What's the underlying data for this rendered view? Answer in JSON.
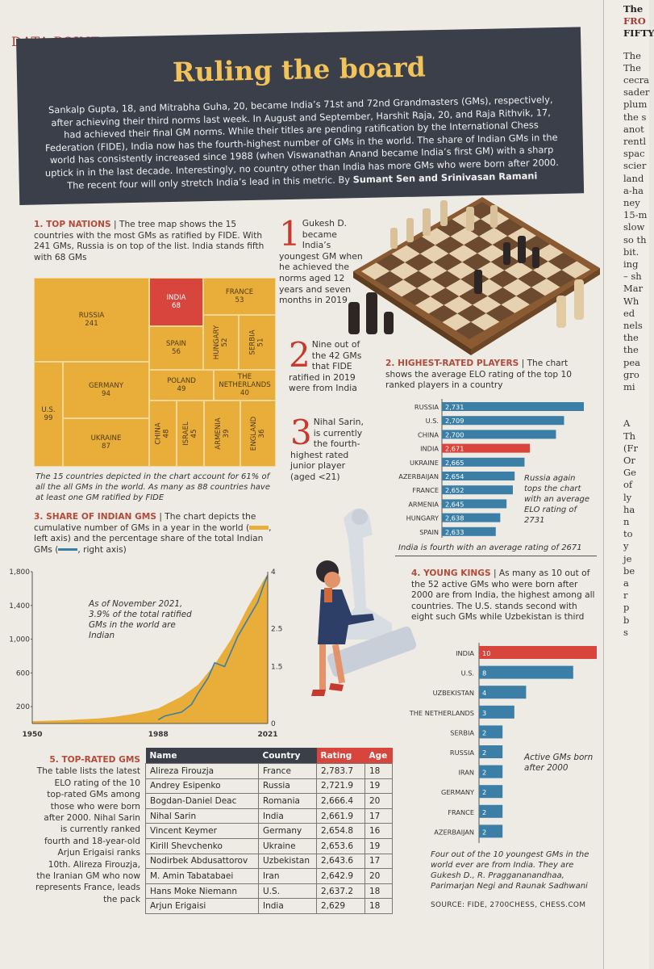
{
  "header": {
    "kicker": "DATA POINT",
    "title": "Ruling the board",
    "intro": "Sankalp Gupta, 18, and Mitrabha Guha, 20, became India’s 71st and 72nd Grandmasters (GMs), respectively, after achieving their third norms last week. In August and September, Harshit Raja, 20, and Raja Rithvik, 17, had achieved their final GM norms. While their titles are pending ratification by the International Chess Federation (FIDE), India now has the fourth-highest number of GMs in the world. The share of Indian GMs in the world has consistently increased since 1988 (when Viswanathan Anand became India’s first GM) with a sharp uptick in in the last decade. Interestingly, no country other than India has more GMs who were born after 2000. The recent four will only stretch India’s lead in this metric. By",
    "byline": "Sumant Sen and Srinivasan Ramani"
  },
  "neighbor_column": [
    "The",
    "FRO",
    "FIFTY",
    "The",
    "The",
    "cecra",
    "sader",
    "plum",
    "the s",
    "anot",
    "rentl",
    "spac",
    "scier",
    "land",
    "a-ha",
    "ney",
    "15-m",
    "slow",
    "so th",
    "bit.",
    "ing",
    "– sh",
    "Mar",
    "Wh",
    "ed",
    "nels",
    "the",
    "the",
    "pea",
    "gro",
    "mi",
    "A",
    "Th",
    "(Fr",
    "Or",
    "Ge",
    "of",
    "ly",
    "ha",
    "n",
    "to",
    "y",
    "je",
    "be",
    "a",
    "r",
    "p",
    "b",
    "s"
  ],
  "sections": {
    "s1": {
      "heading": "1. TOP NATIONS",
      "text": "The tree map shows the 15 countries with the most GMs as ratified by FIDE. With 241 GMs, Russia is on top of the list. India stands fifth with 68 GMs",
      "note": "The 15 countries depicted in the chart account for 61% of all the all GMs in the world. As many as 88 countries have at least one GM ratified by FIDE"
    },
    "s2": {
      "heading": "2. HIGHEST-RATED PLAYERS",
      "text": "The chart shows the average ELO rating of the top 10 ranked players in a country",
      "annotation": "Russia again tops the chart with an average ELO rating of 2731",
      "note": "India is fourth with an average rating of 2671"
    },
    "s3": {
      "heading": "3. SHARE OF INDIAN GMS",
      "text": "The chart depicts the cumulative number of GMs in a year in the world (",
      "text2": ", left axis) and the percentage share of the total Indian GMs (",
      "text3": ", right axis)",
      "annotation": "As of November 2021, 3.9% of the total ratified GMs in the world are Indian"
    },
    "s4": {
      "heading": "4. YOUNG KINGS",
      "text": "As many as 10 out of the 52 active GMs who were born after 2000 are from India, the highest among all countries. The U.S. stands second with eight such GMs while Uzbekistan is third",
      "annotation": "Active GMs born after 2000",
      "note": "Four out of the 10 youngest GMs in the world ever are from India. They are Gukesh D., R. Praggananandhaa, Parimarjan Negi and Raunak Sadhwani",
      "source": "SOURCE: FIDE, 2700CHESS, CHESS.COM"
    },
    "s5": {
      "heading": "5. TOP-RATED GMS",
      "text": "The table lists the latest ELO rating of the 10 top-rated GMs among those who were born after 2000. Nihal Sarin is currently ranked fourth and 18-year-old Arjun Erigaisi ranks 10th. Alireza Firouzja, the Iranian GM who now represents France, leads the pack"
    }
  },
  "facts": [
    {
      "num": "1",
      "text": "Gukesh D. became India’s youngest GM when he achieved the norms aged 12 years and seven months in 2019"
    },
    {
      "num": "2",
      "text": "Nine out of the 42 GMs that FIDE ratified in 2019 were from India"
    },
    {
      "num": "3",
      "text": "Nihal Sarin, is currently the fourth-highest rated junior player (aged <21)"
    }
  ],
  "colors": {
    "banner": "#3b3f4a",
    "gold": "#e9ad3a",
    "red": "#d8453c",
    "blue": "#3b7ea6"
  },
  "table": {
    "headers": [
      "Name",
      "Country",
      "Rating",
      "Age"
    ],
    "rows": [
      [
        "Alireza Firouzja",
        "France",
        "2,783.7",
        "18"
      ],
      [
        "Andrey Esipenko",
        "Russia",
        "2,721.9",
        "19"
      ],
      [
        "Bogdan-Daniel Deac",
        "Romania",
        "2,666.4",
        "20"
      ],
      [
        "Nihal Sarin",
        "India",
        "2,661.9",
        "17"
      ],
      [
        "Vincent Keymer",
        "Germany",
        "2,654.8",
        "16"
      ],
      [
        "Kirill Shevchenko",
        "Ukraine",
        "2,653.6",
        "19"
      ],
      [
        "Nodirbek Abdusattorov",
        "Uzbekistan",
        "2,643.6",
        "17"
      ],
      [
        "M. Amin Tabatabaei",
        "Iran",
        "2,642.9",
        "20"
      ],
      [
        "Hans Moke Niemann",
        "U.S.",
        "2,637.2",
        "18"
      ],
      [
        "Arjun Erigaisi",
        "India",
        "2,629",
        "18"
      ]
    ]
  },
  "chart_data": [
    {
      "type": "treemap",
      "items": [
        {
          "name": "RUSSIA",
          "value": 241
        },
        {
          "name": "INDIA",
          "value": 68,
          "highlight": true
        },
        {
          "name": "FRANCE",
          "value": 53
        },
        {
          "name": "SPAIN",
          "value": 56
        },
        {
          "name": "HUNGARY",
          "value": 52
        },
        {
          "name": "SERBIA",
          "value": 51
        },
        {
          "name": "GERMANY",
          "value": 94
        },
        {
          "name": "POLAND",
          "value": 49
        },
        {
          "name": "THE NETHERLANDS",
          "value": 40
        },
        {
          "name": "U.S.",
          "value": 99
        },
        {
          "name": "UKRAINE",
          "value": 87
        },
        {
          "name": "CHINA",
          "value": 48
        },
        {
          "name": "ISRAEL",
          "value": 45
        },
        {
          "name": "ARMENIA",
          "value": 39
        },
        {
          "name": "ENGLAND",
          "value": 36
        }
      ]
    },
    {
      "type": "bar",
      "orientation": "horizontal",
      "categories": [
        "RUSSIA",
        "U.S.",
        "CHINA",
        "INDIA",
        "UKRAINE",
        "AZERBAIJAN",
        "FRANCE",
        "ARMENIA",
        "HUNGARY",
        "SPAIN"
      ],
      "values": [
        2731,
        2709,
        2700,
        2671,
        2665,
        2654,
        2652,
        2645,
        2638,
        2633
      ],
      "labels": [
        "2,731",
        "2,709",
        "2,700",
        "2,671",
        "2,665",
        "2,654",
        "2,652",
        "2,645",
        "2,638",
        "2,633"
      ],
      "highlight": "INDIA"
    },
    {
      "type": "line",
      "x": [
        1950,
        1988,
        2021
      ],
      "xticks": [
        "1950",
        "1988",
        "2021"
      ],
      "left_axis": {
        "ticks": [
          "200",
          "600",
          "1,000",
          "1,400",
          "1,800"
        ],
        "ylim": [
          0,
          1800
        ]
      },
      "right_axis": {
        "ticks": [
          "0",
          "1.5",
          "2.5",
          "4"
        ],
        "ylim": [
          0,
          4
        ]
      },
      "series": [
        {
          "kind": "area",
          "axis": "left",
          "x": [
            1950,
            1960,
            1970,
            1975,
            1980,
            1985,
            1988,
            1990,
            1995,
            2000,
            2005,
            2008,
            2010,
            2012,
            2015,
            2018,
            2021
          ],
          "y": [
            28,
            40,
            60,
            80,
            110,
            150,
            180,
            220,
            320,
            460,
            700,
            880,
            1000,
            1150,
            1380,
            1580,
            1780
          ]
        },
        {
          "kind": "line",
          "axis": "right",
          "x": [
            1988,
            1990,
            1995,
            1998,
            2000,
            2003,
            2005,
            2008,
            2010,
            2012,
            2014,
            2016,
            2018,
            2020,
            2021
          ],
          "y": [
            0.1,
            0.2,
            0.3,
            0.5,
            0.8,
            1.2,
            1.6,
            1.5,
            1.9,
            2.3,
            2.6,
            2.9,
            3.2,
            3.7,
            3.9
          ]
        }
      ]
    },
    {
      "type": "bar",
      "orientation": "horizontal",
      "categories": [
        "INDIA",
        "U.S.",
        "UZBEKISTAN",
        "THE NETHERLANDS",
        "SERBIA",
        "RUSSIA",
        "IRAN",
        "GERMANY",
        "FRANCE",
        "AZERBAIJAN"
      ],
      "values": [
        10,
        8,
        4,
        3,
        2,
        2,
        2,
        2,
        2,
        2
      ],
      "highlight": "INDIA"
    }
  ]
}
